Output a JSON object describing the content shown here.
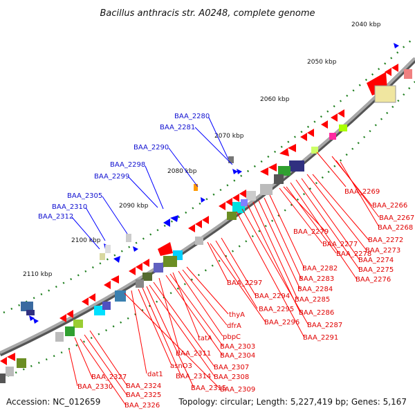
{
  "title": "Bacillus anthracis str. A0248, complete genome",
  "footer": {
    "accession": "Accession: NC_012659",
    "summary": "Topology: circular; Length: 5,227,419 bp; Genes: 5,167"
  },
  "scale_labels": [
    "2040 kbp",
    "2050 kbp",
    "2060 kbp",
    "2070 kbp",
    "2080 kbp",
    "2090 kbp",
    "2100 kbp",
    "2110 kbp"
  ],
  "blue_labels": [
    "BAA_2280",
    "BAA_2281",
    "BAA_2290",
    "BAA_2298",
    "BAA_2299",
    "BAA_2305",
    "BAA_2310",
    "BAA_2312"
  ],
  "red_labels": [
    "BAA_2269",
    "BAA_2266",
    "BAA_2267",
    "BAA_2268",
    "BAA_2272",
    "BAA_2273",
    "BAA_2274",
    "BAA_2275",
    "BAA_2276",
    "BAA_2279",
    "BAA_2277",
    "BAA_2278",
    "BAA_2282",
    "BAA_2283",
    "BAA_2284",
    "BAA_2285",
    "BAA_2286",
    "BAA_2287",
    "BAA_2291",
    "BAA_2297",
    "BAA_2294",
    "BAA_2295",
    "BAA_2296",
    "thyA",
    "dfrA",
    "pbpC",
    "tatA",
    "BAA_2303",
    "BAA_2304",
    "BAA_2311",
    "BAA_2307",
    "BAA_2308",
    "dat1",
    "asnO3",
    "BAA_2314",
    "BAA_2315",
    "BAA_2309",
    "BAA_2327",
    "BAA_2330",
    "BAA_2324",
    "BAA_2325",
    "BAA_2326"
  ],
  "colors": {
    "backbone": "#8a8a8a",
    "forward_gene": "#ff0000",
    "reverse_gene": "#0000ff",
    "label_line_blue": "#0000ff",
    "label_line_red": "#ff0000",
    "scale_ticks": "#208020"
  },
  "icons": [
    "gene-arrow-icon",
    "scale-tick-icon"
  ]
}
